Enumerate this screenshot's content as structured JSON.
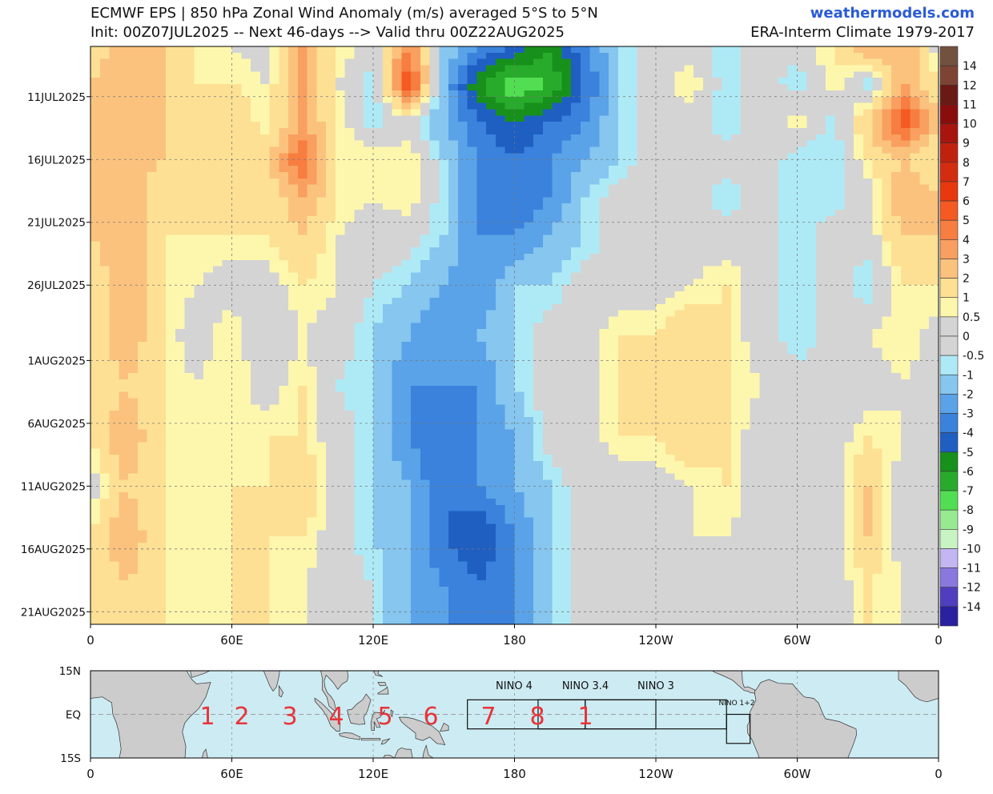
{
  "header": {
    "title": "ECMWF EPS | 850 hPa Zonal Wind Anomaly (m/s) averaged 5°S to 5°N",
    "subtitle": "Init: 00Z07JUL2025 -- Next 46-days --> Valid thru 00Z22AUG2025",
    "site": "weathermodels.com",
    "climate": "ERA-Interm Climate 1979-2017",
    "site_color": "#2a5bd7"
  },
  "chart_data": {
    "type": "heatmap",
    "title": "ECMWF EPS | 850 hPa Zonal Wind Anomaly (m/s) averaged 5°S to 5°N",
    "units": "m/s",
    "x_ticks": [
      "0",
      "60E",
      "120E",
      "180",
      "120W",
      "60W",
      "0"
    ],
    "x_range_deg_east": [
      0,
      360
    ],
    "y_ticks": [
      "11JUL2025",
      "16JUL2025",
      "21JUL2025",
      "26JUL2025",
      "1AUG2025",
      "6AUG2025",
      "11AUG2025",
      "16AUG2025",
      "21AUG2025"
    ],
    "y_range": [
      "2025-07-07",
      "2025-08-22"
    ],
    "grid": true,
    "lon": [
      0,
      15,
      30,
      45,
      60,
      75,
      90,
      105,
      120,
      135,
      150,
      165,
      180,
      195,
      210,
      225,
      240,
      255,
      270,
      285,
      300,
      315,
      330,
      345,
      360
    ],
    "dates": [
      "2025-07-07",
      "2025-07-10",
      "2025-07-13",
      "2025-07-16",
      "2025-07-19",
      "2025-07-22",
      "2025-07-26",
      "2025-07-30",
      "2025-08-03",
      "2025-08-07",
      "2025-08-11",
      "2025-08-15",
      "2025-08-19",
      "2025-08-22"
    ],
    "values": [
      [
        1,
        3,
        2,
        1,
        0.5,
        0,
        3,
        1,
        0,
        4,
        -1,
        -3,
        -4,
        -6,
        -3,
        -1,
        0,
        0,
        -1,
        0,
        0,
        1,
        3,
        3,
        0
      ],
      [
        2,
        3,
        2,
        1,
        1,
        0.5,
        3,
        0.5,
        -1,
        6,
        -2,
        -6,
        -8,
        -7,
        -4,
        -1,
        0,
        1,
        -1,
        0,
        -1,
        1,
        -1,
        3,
        1
      ],
      [
        2,
        3,
        2,
        1,
        2,
        0.5,
        3,
        1,
        -1,
        0,
        -2,
        -4,
        -5,
        -4,
        -3,
        -1,
        0,
        0,
        -1,
        0,
        1,
        -1,
        2,
        6,
        2
      ],
      [
        2,
        3,
        2,
        2,
        1,
        2,
        5,
        1,
        1,
        1,
        -1,
        -3,
        -4,
        -3,
        -2,
        -1,
        0,
        0,
        0,
        0,
        -1,
        -1,
        1,
        2,
        1
      ],
      [
        2,
        3,
        1,
        1,
        2,
        1,
        3,
        1,
        0.5,
        1,
        -1,
        -3,
        -4,
        -3,
        -1,
        0,
        0,
        0,
        -1,
        0,
        -1,
        -1,
        0,
        3,
        2
      ],
      [
        2,
        3,
        1,
        1,
        1,
        1,
        2,
        0.5,
        0,
        0,
        -1,
        -3,
        -3,
        -2,
        -1,
        0,
        0,
        0,
        0,
        0,
        -1,
        0,
        0,
        2,
        2
      ],
      [
        1,
        3,
        1,
        0.5,
        0,
        0,
        1,
        0.5,
        -0.5,
        -1,
        -2,
        -3,
        -1,
        -1,
        0,
        0,
        0,
        0.5,
        1,
        0,
        -1,
        0,
        -1,
        1,
        1
      ],
      [
        1,
        3,
        1,
        0,
        1,
        -0.5,
        0.5,
        0,
        -1,
        -2,
        -3,
        -2,
        -1,
        0,
        0,
        1,
        1,
        2,
        1,
        0,
        -1,
        0,
        0.5,
        1,
        0
      ],
      [
        1,
        2,
        1,
        0.5,
        1,
        0,
        1,
        -0.5,
        -1,
        -3,
        -3,
        -3,
        -1,
        0,
        0,
        1,
        2,
        2,
        1,
        0.5,
        0,
        -0.5,
        0,
        0.5,
        0
      ],
      [
        1,
        3,
        1,
        0.5,
        0.5,
        1,
        1,
        0,
        -1,
        -3,
        -4,
        -3,
        -2,
        0,
        0,
        1,
        1,
        2,
        1,
        0,
        0,
        0,
        1,
        0.5,
        0
      ],
      [
        0,
        2,
        1,
        0.5,
        1,
        1,
        2,
        0,
        -1,
        -2,
        -4,
        -3,
        -2,
        -1,
        0,
        0,
        0,
        0.5,
        1,
        0,
        0,
        0,
        2,
        0,
        0
      ],
      [
        1,
        3,
        1,
        1,
        1,
        1,
        1,
        0,
        -1,
        -2,
        -4,
        -5,
        -3,
        -1,
        0,
        0,
        0,
        0.5,
        0.5,
        0,
        0,
        0,
        2,
        0,
        0
      ],
      [
        1,
        2,
        1,
        0.5,
        1,
        1,
        0.5,
        0,
        -0.5,
        -2,
        -3,
        -4,
        -3,
        -1,
        0,
        0,
        0,
        0,
        0,
        0,
        0,
        0,
        1,
        0.5,
        0
      ],
      [
        1,
        2,
        1,
        0.5,
        1,
        1,
        0.5,
        0,
        -0.5,
        -2,
        -3,
        -4,
        -3,
        -1,
        0,
        0,
        0,
        0,
        0,
        0,
        0,
        0,
        1,
        0.5,
        0
      ]
    ],
    "colorbar": {
      "labels": [
        "14",
        "12",
        "11",
        "10",
        "9",
        "8",
        "7",
        "6",
        "5",
        "4",
        "3",
        "2",
        "1",
        "0.5",
        "0",
        "-0.5",
        "-1",
        "-2",
        "-3",
        "-4",
        "-5",
        "-6",
        "-7",
        "-8",
        "-9",
        "-10",
        "-11",
        "-12",
        "-14"
      ],
      "levels": [
        14,
        12,
        11,
        10,
        9,
        8,
        7,
        6,
        5,
        4,
        3,
        2,
        1,
        0.5,
        0,
        -0.5,
        -1,
        -2,
        -3,
        -4,
        -5,
        -6,
        -7,
        -8,
        -9,
        -10,
        -11,
        -12,
        -14
      ],
      "colors": [
        "#73513f",
        "#7d4433",
        "#6a1a14",
        "#8a0d0d",
        "#a8150f",
        "#c0210f",
        "#d42c10",
        "#e8380d",
        "#f45a22",
        "#f77d40",
        "#f99f60",
        "#fbc27e",
        "#fde094",
        "#fdf7ad",
        "#d4d4d4",
        "#d4d4d4",
        "#aeeaf6",
        "#86c6ef",
        "#5aa3e8",
        "#3a82dc",
        "#1f5fc2",
        "#18901c",
        "#28ab2b",
        "#52de52",
        "#98ea90",
        "#c8f3c3",
        "#c3b6f3",
        "#8b78de",
        "#4f3fbf",
        "#2a21a0"
      ]
    }
  },
  "map": {
    "lat_labels": [
      "15N",
      "EQ",
      "15S"
    ],
    "x_ticks": [
      "0",
      "60E",
      "120E",
      "180",
      "120W",
      "60W",
      "0"
    ],
    "nino_labels": [
      "NINO 4",
      "NINO 3.4",
      "NINO 3",
      "NINO 1+2"
    ],
    "phase_labels": [
      "1",
      "2",
      "3",
      "4",
      "5",
      "6",
      "7",
      "8",
      "1"
    ],
    "ocean_color": "#cdebf2",
    "land_color": "#cccccc",
    "phase_color": "#e8343a"
  }
}
